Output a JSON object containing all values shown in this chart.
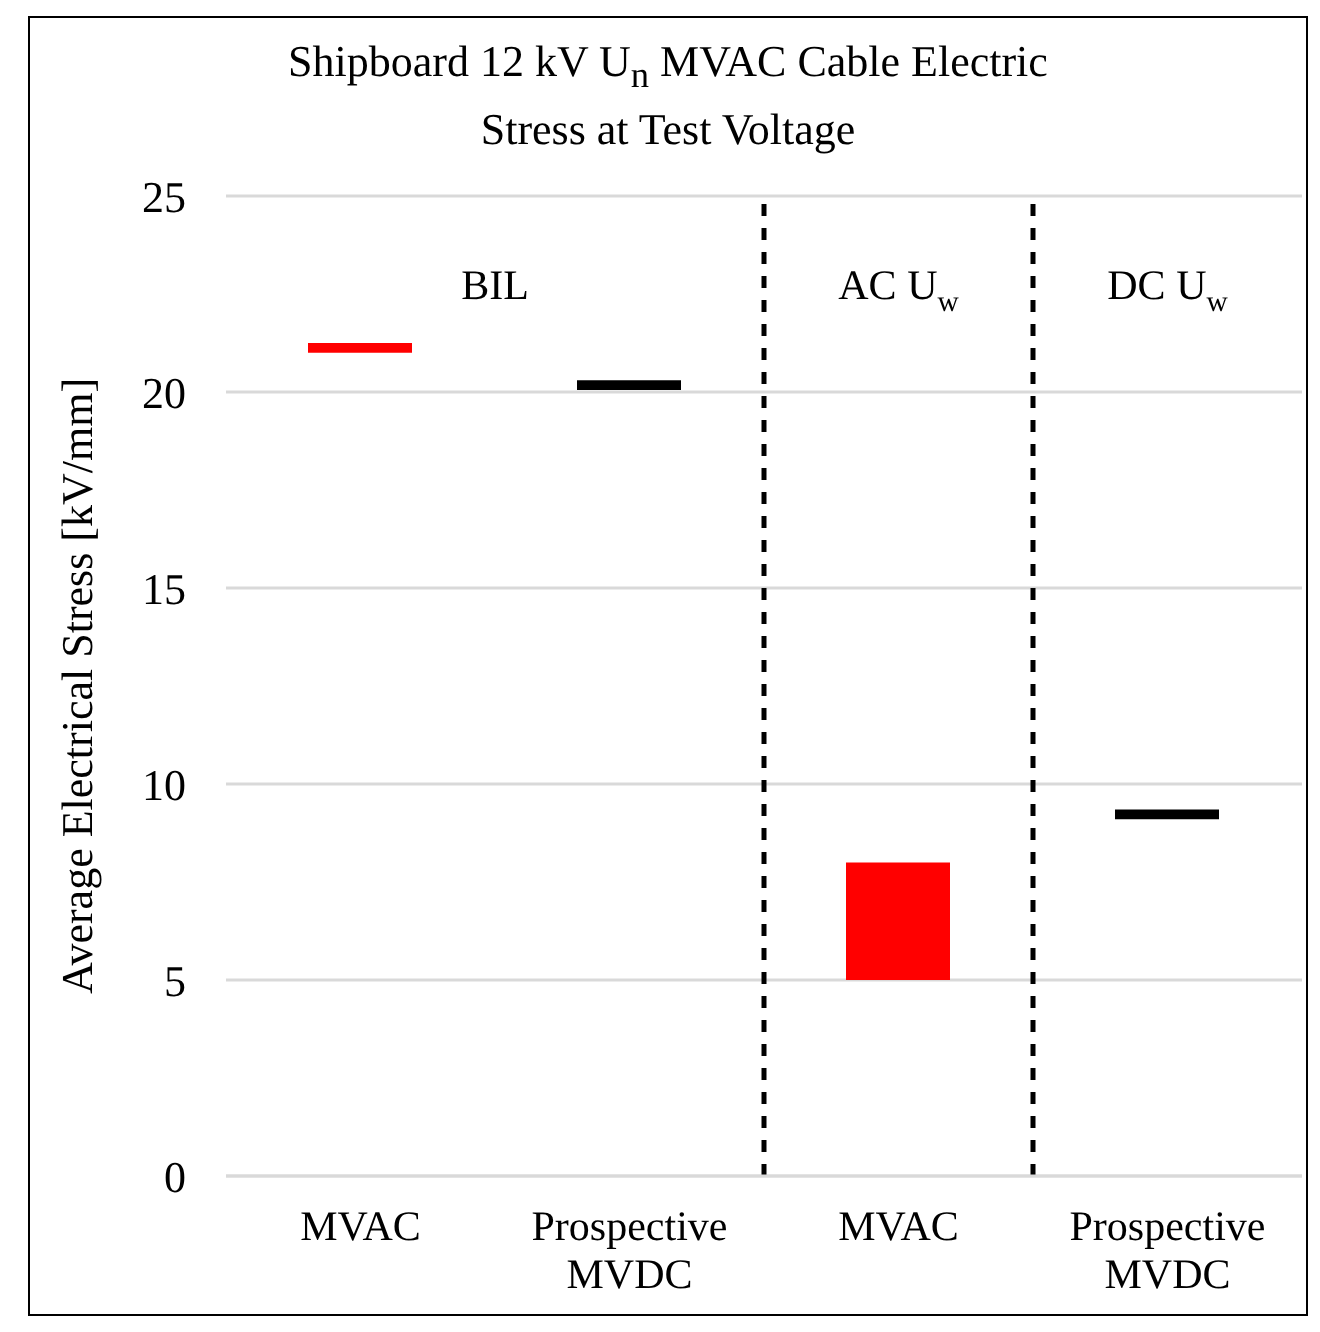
{
  "chart_data": {
    "type": "bar",
    "title": "Shipboard 12 kV U$_{n}$ MVAC Cable Electric Stress at Test Voltage",
    "ylabel": "Average Electrical Stress [kV/mm]",
    "categories": [
      "MVAC",
      "Prospective MVDC",
      "MVAC",
      "Prospective MVDC"
    ],
    "values": [
      0.25,
      0.25,
      3.0,
      0.25
    ],
    "base": [
      21.0,
      20.05,
      5.0,
      9.1
    ],
    "colors": [
      "#ff0000",
      "#000000",
      "#ff0000",
      "#000000"
    ],
    "ylim": [
      0,
      25
    ],
    "yticks": [
      0,
      5,
      10,
      15,
      20,
      25
    ],
    "grid": "y",
    "annotations": [
      "BIL",
      "AC U$_{w}$",
      "DC U$_{w}$"
    ]
  }
}
